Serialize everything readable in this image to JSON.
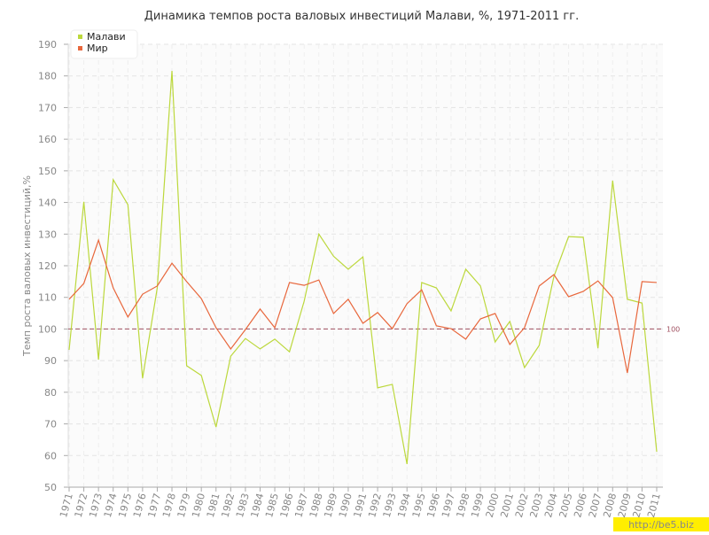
{
  "chart_data": {
    "type": "line",
    "title": "Динамика темпов роста валовых инвестиций Малави, %, 1971-2011 гг.",
    "y_label": "Темп роста валовых инвестиций,%",
    "x": [
      1971,
      1972,
      1973,
      1974,
      1975,
      1976,
      1977,
      1978,
      1979,
      1980,
      1981,
      1982,
      1983,
      1984,
      1985,
      1986,
      1987,
      1988,
      1989,
      1990,
      1991,
      1992,
      1993,
      1994,
      1995,
      1996,
      1997,
      1998,
      1999,
      2000,
      2001,
      2002,
      2003,
      2004,
      2005,
      2006,
      2007,
      2008,
      2009,
      2010,
      2011
    ],
    "xlim": [
      1971,
      2011
    ],
    "series": [
      {
        "name": "Малави",
        "color": "#bcd83c",
        "values": [
          93.4,
          140.2,
          90.3,
          147.2,
          139.3,
          84.4,
          113,
          181.6,
          88.4,
          85.3,
          69,
          91.4,
          97,
          93.7,
          96.8,
          92.8,
          108.8,
          130,
          123,
          118.9,
          122.8,
          81.4,
          82.5,
          57.3,
          114.7,
          113,
          105.7,
          118.9,
          113.6,
          95.9,
          102.4,
          87.8,
          94.8,
          116.6,
          129.2,
          129,
          93.9,
          146.9,
          109.4,
          108.2,
          61.2
        ]
      },
      {
        "name": "Мир",
        "color": "#e8673c",
        "values": [
          109.4,
          114.4,
          128.1,
          113,
          103.8,
          111,
          113.6,
          120.8,
          115,
          109.6,
          100.4,
          93.7,
          99.8,
          106.3,
          100.4,
          114.7,
          113.8,
          115.5,
          104.9,
          109.4,
          101.8,
          105.2,
          100.1,
          108,
          112.4,
          101,
          100.1,
          96.8,
          103.2,
          104.9,
          95.1,
          100.4,
          113.6,
          117.2,
          110.2,
          111.9,
          115.2,
          109.9,
          86.1,
          115,
          114.7
        ]
      }
    ],
    "ylim": [
      50,
      190
    ],
    "yticks": [
      50,
      60,
      70,
      80,
      90,
      100,
      110,
      120,
      130,
      140,
      150,
      160,
      170,
      180,
      190
    ],
    "reference_line": 100,
    "grid": true,
    "legend": "top-left",
    "watermark": "http://be5.biz"
  }
}
